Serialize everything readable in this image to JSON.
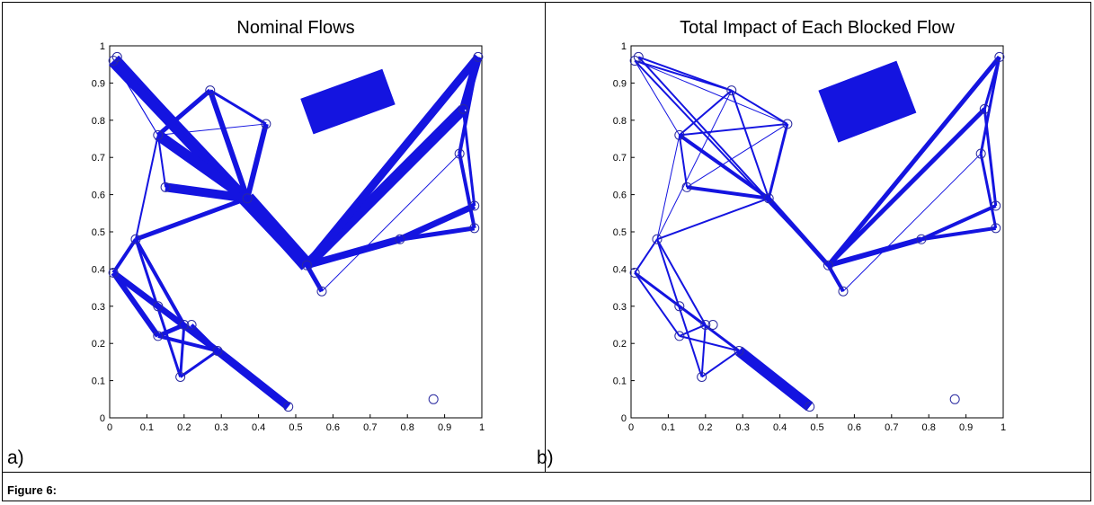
{
  "figure": {
    "caption": "Figure 6:",
    "panels": [
      {
        "label": "a)"
      },
      {
        "label": "b)"
      }
    ]
  },
  "colors": {
    "flow": "#1414e0",
    "node": "#2a2aa0",
    "axis": "#000000"
  },
  "chart_data": [
    {
      "type": "network",
      "title": "Nominal Flows",
      "xlim": [
        0,
        1
      ],
      "ylim": [
        0,
        1
      ],
      "xticks": [
        "0",
        "0.1",
        "0.2",
        "0.3",
        "0.4",
        "0.5",
        "0.6",
        "0.7",
        "0.8",
        "0.9",
        "1"
      ],
      "yticks": [
        "0",
        "0.1",
        "0.2",
        "0.3",
        "0.4",
        "0.5",
        "0.6",
        "0.7",
        "0.8",
        "0.9",
        "1"
      ],
      "nodes": [
        [
          0.01,
          0.96
        ],
        [
          0.02,
          0.97
        ],
        [
          0.27,
          0.88
        ],
        [
          0.42,
          0.79
        ],
        [
          0.13,
          0.76
        ],
        [
          0.15,
          0.62
        ],
        [
          0.37,
          0.59
        ],
        [
          0.07,
          0.48
        ],
        [
          0.01,
          0.39
        ],
        [
          0.13,
          0.22
        ],
        [
          0.19,
          0.11
        ],
        [
          0.2,
          0.25
        ],
        [
          0.29,
          0.18
        ],
        [
          0.48,
          0.03
        ],
        [
          0.57,
          0.34
        ],
        [
          0.53,
          0.41
        ],
        [
          0.78,
          0.48
        ],
        [
          0.94,
          0.71
        ],
        [
          0.98,
          0.57
        ],
        [
          0.98,
          0.51
        ],
        [
          0.95,
          0.83
        ],
        [
          0.99,
          0.97
        ],
        [
          0.87,
          0.05
        ],
        [
          0.22,
          0.25
        ],
        [
          0.13,
          0.3
        ]
      ],
      "edges": [
        [
          0,
          15,
          14
        ],
        [
          1,
          15,
          5
        ],
        [
          0,
          4,
          1
        ],
        [
          4,
          3,
          1
        ],
        [
          4,
          5,
          2
        ],
        [
          4,
          2,
          5
        ],
        [
          4,
          6,
          12
        ],
        [
          2,
          6,
          6
        ],
        [
          3,
          6,
          6
        ],
        [
          5,
          6,
          10
        ],
        [
          6,
          15,
          16
        ],
        [
          15,
          14,
          5
        ],
        [
          15,
          16,
          8
        ],
        [
          16,
          18,
          7
        ],
        [
          16,
          19,
          5
        ],
        [
          14,
          17,
          1
        ],
        [
          17,
          19,
          4
        ],
        [
          17,
          21,
          4
        ],
        [
          20,
          21,
          9
        ],
        [
          20,
          18,
          3
        ],
        [
          0,
          4,
          1
        ],
        [
          15,
          20,
          12
        ],
        [
          15,
          21,
          9
        ],
        [
          6,
          7,
          5
        ],
        [
          7,
          8,
          4
        ],
        [
          8,
          9,
          6
        ],
        [
          8,
          12,
          7
        ],
        [
          7,
          11,
          4
        ],
        [
          9,
          11,
          5
        ],
        [
          9,
          12,
          4
        ],
        [
          12,
          13,
          9
        ],
        [
          10,
          11,
          3
        ],
        [
          10,
          12,
          3
        ],
        [
          7,
          10,
          3
        ],
        [
          8,
          11,
          3
        ],
        [
          23,
          12,
          4
        ],
        [
          24,
          12,
          3
        ],
        [
          4,
          7,
          2
        ],
        [
          2,
          3,
          3
        ]
      ],
      "box": {
        "from": [
          0.53,
          0.81
        ],
        "to": [
          0.75,
          0.89
        ],
        "width": 42
      }
    },
    {
      "type": "network",
      "title": "Total Impact of Each Blocked Flow",
      "xlim": [
        0,
        1
      ],
      "ylim": [
        0,
        1
      ],
      "xticks": [
        "0",
        "0.1",
        "0.2",
        "0.3",
        "0.4",
        "0.5",
        "0.6",
        "0.7",
        "0.8",
        "0.9",
        "1"
      ],
      "yticks": [
        "0",
        "0.1",
        "0.2",
        "0.3",
        "0.4",
        "0.5",
        "0.6",
        "0.7",
        "0.8",
        "0.9",
        "1"
      ],
      "nodes": [
        [
          0.01,
          0.96
        ],
        [
          0.02,
          0.97
        ],
        [
          0.27,
          0.88
        ],
        [
          0.42,
          0.79
        ],
        [
          0.13,
          0.76
        ],
        [
          0.15,
          0.62
        ],
        [
          0.37,
          0.59
        ],
        [
          0.07,
          0.48
        ],
        [
          0.01,
          0.39
        ],
        [
          0.13,
          0.22
        ],
        [
          0.19,
          0.11
        ],
        [
          0.2,
          0.25
        ],
        [
          0.29,
          0.18
        ],
        [
          0.48,
          0.03
        ],
        [
          0.57,
          0.34
        ],
        [
          0.53,
          0.41
        ],
        [
          0.78,
          0.48
        ],
        [
          0.94,
          0.71
        ],
        [
          0.98,
          0.57
        ],
        [
          0.98,
          0.51
        ],
        [
          0.95,
          0.83
        ],
        [
          0.99,
          0.97
        ],
        [
          0.87,
          0.05
        ],
        [
          0.22,
          0.25
        ],
        [
          0.13,
          0.3
        ]
      ],
      "edges": [
        [
          0,
          15,
          2
        ],
        [
          1,
          15,
          2
        ],
        [
          0,
          2,
          2
        ],
        [
          1,
          2,
          2
        ],
        [
          0,
          4,
          1
        ],
        [
          4,
          3,
          2
        ],
        [
          4,
          5,
          2
        ],
        [
          4,
          2,
          2
        ],
        [
          4,
          6,
          4
        ],
        [
          2,
          6,
          2
        ],
        [
          3,
          6,
          3
        ],
        [
          5,
          6,
          4
        ],
        [
          6,
          15,
          5
        ],
        [
          15,
          14,
          4
        ],
        [
          15,
          16,
          6
        ],
        [
          16,
          18,
          4
        ],
        [
          16,
          19,
          4
        ],
        [
          14,
          17,
          1
        ],
        [
          17,
          19,
          3
        ],
        [
          17,
          21,
          3
        ],
        [
          20,
          21,
          3
        ],
        [
          20,
          18,
          3
        ],
        [
          15,
          20,
          5
        ],
        [
          15,
          21,
          5
        ],
        [
          6,
          7,
          2
        ],
        [
          7,
          8,
          2
        ],
        [
          8,
          9,
          2
        ],
        [
          8,
          12,
          3
        ],
        [
          7,
          11,
          2
        ],
        [
          9,
          11,
          2
        ],
        [
          9,
          12,
          2
        ],
        [
          12,
          13,
          12
        ],
        [
          10,
          11,
          2
        ],
        [
          10,
          12,
          2
        ],
        [
          7,
          10,
          2
        ],
        [
          8,
          11,
          2
        ],
        [
          4,
          7,
          1
        ],
        [
          2,
          3,
          2
        ],
        [
          2,
          7,
          1
        ],
        [
          3,
          5,
          1
        ],
        [
          0,
          3,
          1
        ]
      ],
      "box": {
        "from": [
          0.53,
          0.81
        ],
        "to": [
          0.74,
          0.89
        ],
        "width": 62
      }
    }
  ]
}
